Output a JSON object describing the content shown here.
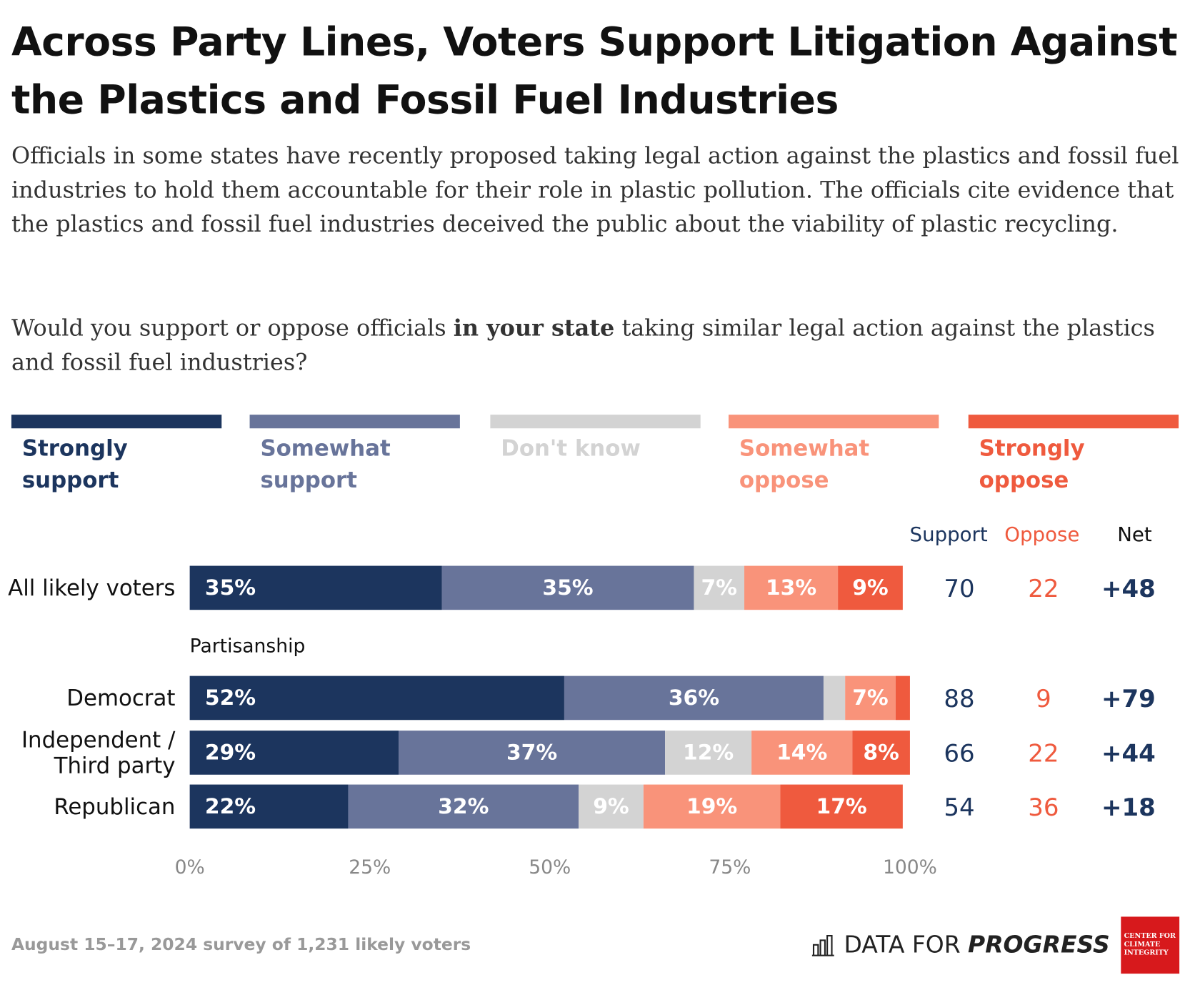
{
  "chart_data": {
    "type": "stacked-bar-horizontal",
    "title": "Across Party Lines, Voters Support Litigation Against the Plastics and Fossil Fuel Industries",
    "subtitle": "Officials in some states have recently proposed taking legal action against the plastics and fossil fuel industries to hold them accountable for their role in plastic pollution. The officials cite evidence that the plastics and fossil fuel industries deceived the public about the viability of plastic recycling.",
    "question": [
      "Would you support or oppose officials ",
      "in your state",
      " taking similar legal action against the plastics and fossil fuel industries?"
    ],
    "categories": [
      "All likely voters",
      "Democrat",
      "Independent / Third party",
      "Republican"
    ],
    "group_label": "Partisanship",
    "series": [
      {
        "name": "Strongly support",
        "color": "#1c355e",
        "label_color": "#ffffff",
        "values": [
          35,
          52,
          29,
          22
        ],
        "value_labels": [
          "35%",
          "52%",
          "29%",
          "22%"
        ]
      },
      {
        "name": "Somewhat support",
        "color": "#68749a",
        "label_color": "#ffffff",
        "values": [
          35,
          36,
          37,
          32
        ],
        "value_labels": [
          "35%",
          "36%",
          "37%",
          "32%"
        ]
      },
      {
        "name": "Don't know",
        "color": "#d3d3d3",
        "label_color": "#ffffff",
        "values": [
          7,
          3,
          12,
          9
        ],
        "value_labels": [
          "7%",
          null,
          "12%",
          "9%"
        ]
      },
      {
        "name": "Somewhat oppose",
        "color": "#f9937a",
        "label_color": "#ffffff",
        "values": [
          13,
          7,
          14,
          19
        ],
        "value_labels": [
          "13%",
          "7%",
          "14%",
          "19%"
        ]
      },
      {
        "name": "Strongly oppose",
        "color": "#ef5a3e",
        "label_color": "#ffffff",
        "values": [
          9,
          2,
          8,
          17
        ],
        "value_labels": [
          "9%",
          null,
          "8%",
          "17%"
        ]
      }
    ],
    "xlim": [
      0,
      100
    ],
    "xticks": [
      {
        "value": 0,
        "label": "0%"
      },
      {
        "value": 25,
        "label": "25%"
      },
      {
        "value": 50,
        "label": "50%"
      },
      {
        "value": 75,
        "label": "75%"
      },
      {
        "value": 100,
        "label": "100%"
      }
    ],
    "summary": {
      "columns": [
        {
          "name": "Support",
          "color": "#1c355e"
        },
        {
          "name": "Oppose",
          "color": "#ef5a3e"
        },
        {
          "name": "Net",
          "color": "#111111"
        }
      ],
      "support": [
        70,
        88,
        66,
        54
      ],
      "oppose": [
        22,
        9,
        22,
        36
      ],
      "net": [
        48,
        79,
        44,
        18
      ],
      "net_labels": [
        "+48",
        "+79",
        "+44",
        "+18"
      ]
    },
    "source": "August 15–17, 2024 survey of 1,231 likely voters",
    "logos": {
      "dfp": [
        "DATA FOR ",
        "PROGRESS"
      ],
      "cci": "CENTER FOR CLIMATE INTEGRITY"
    }
  }
}
